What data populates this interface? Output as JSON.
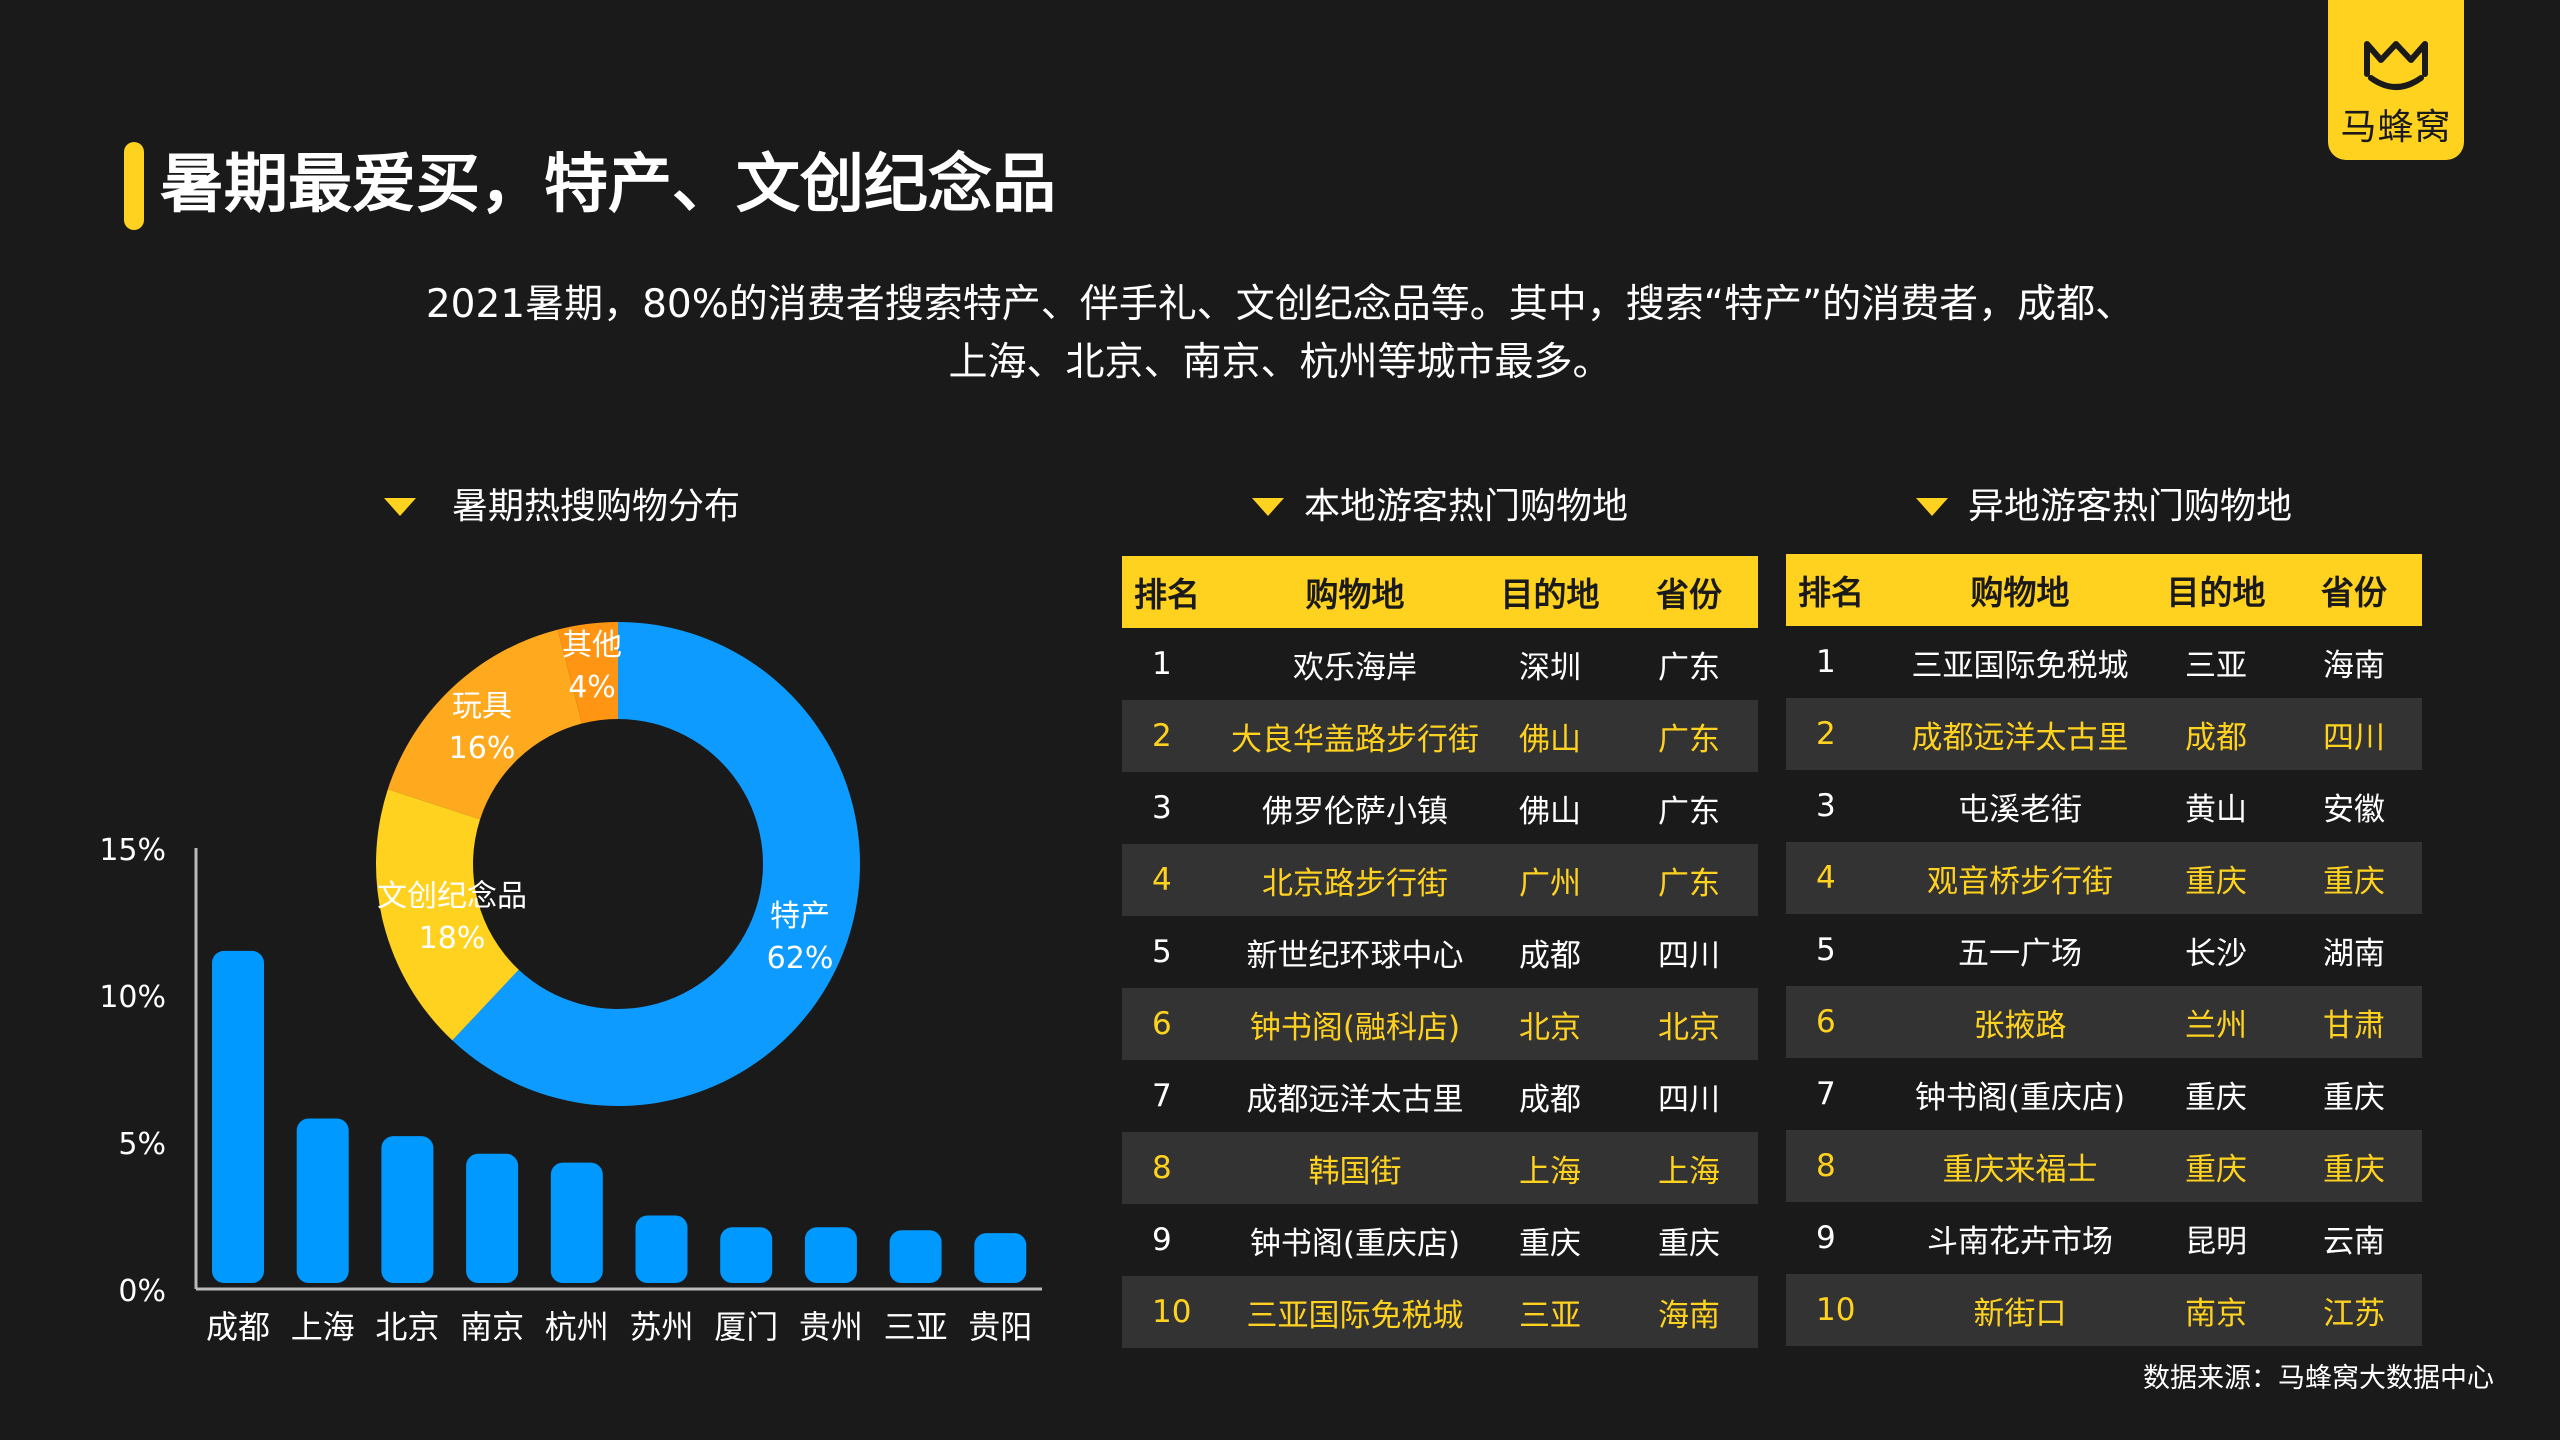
{
  "brand": {
    "name": "马蜂窝"
  },
  "title": "暑期最爱买，特产、文创纪念品",
  "subtitle_line1": "2021暑期，80%的消费者搜索特产、伴手礼、文创纪念品等。其中，搜索“特产”的消费者，成都、",
  "subtitle_line2": "上海、北京、南京、杭州等城市最多。",
  "sections": {
    "donut_title": "暑期热搜购物分布",
    "local_title": "本地游客热门购物地",
    "remote_title": "异地游客热门购物地"
  },
  "colors": {
    "accent": "#ffd21f",
    "bar": "#0099ff",
    "background": "#1a1a1a",
    "row_alt": "#333333"
  },
  "chart_data": [
    {
      "type": "pie",
      "donut": true,
      "title": "暑期热搜购物分布",
      "slices": [
        {
          "name": "特产",
          "value": 62,
          "label": "62%",
          "color": "#0d9bff"
        },
        {
          "name": "文创纪念品",
          "value": 18,
          "label": "18%",
          "color": "#ffd21f"
        },
        {
          "name": "玩具",
          "value": 16,
          "label": "16%",
          "color": "#ffaa1e"
        },
        {
          "name": "其他",
          "value": 4,
          "label": "4%",
          "color": "#ff9512"
        }
      ]
    },
    {
      "type": "bar",
      "categories": [
        "成都",
        "上海",
        "北京",
        "南京",
        "杭州",
        "苏州",
        "厦门",
        "贵州",
        "三亚",
        "贵阳"
      ],
      "values": [
        11.5,
        5.8,
        5.2,
        4.6,
        4.3,
        2.5,
        2.1,
        2.1,
        2.0,
        1.9
      ],
      "ylim": [
        0,
        15
      ],
      "yticks": [
        "0%",
        "5%",
        "10%",
        "15%"
      ],
      "ytick_values": [
        0,
        5,
        10,
        15
      ],
      "color": "#0099ff"
    }
  ],
  "local_table": {
    "headers": [
      "排名",
      "购物地",
      "目的地",
      "省份"
    ],
    "rows": [
      [
        "1",
        "欢乐海岸",
        "深圳",
        "广东"
      ],
      [
        "2",
        "大良华盖路步行街",
        "佛山",
        "广东"
      ],
      [
        "3",
        "佛罗伦萨小镇",
        "佛山",
        "广东"
      ],
      [
        "4",
        "北京路步行街",
        "广州",
        "广东"
      ],
      [
        "5",
        "新世纪环球中心",
        "成都",
        "四川"
      ],
      [
        "6",
        "钟书阁(融科店)",
        "北京",
        "北京"
      ],
      [
        "7",
        "成都远洋太古里",
        "成都",
        "四川"
      ],
      [
        "8",
        "韩国街",
        "上海",
        "上海"
      ],
      [
        "9",
        "钟书阁(重庆店)",
        "重庆",
        "重庆"
      ],
      [
        "10",
        "三亚国际免税城",
        "三亚",
        "海南"
      ]
    ]
  },
  "remote_table": {
    "headers": [
      "排名",
      "购物地",
      "目的地",
      "省份"
    ],
    "rows": [
      [
        "1",
        "三亚国际免税城",
        "三亚",
        "海南"
      ],
      [
        "2",
        "成都远洋太古里",
        "成都",
        "四川"
      ],
      [
        "3",
        "屯溪老街",
        "黄山",
        "安徽"
      ],
      [
        "4",
        "观音桥步行街",
        "重庆",
        "重庆"
      ],
      [
        "5",
        "五一广场",
        "长沙",
        "湖南"
      ],
      [
        "6",
        "张掖路",
        "兰州",
        "甘肃"
      ],
      [
        "7",
        "钟书阁(重庆店)",
        "重庆",
        "重庆"
      ],
      [
        "8",
        "重庆来福士",
        "重庆",
        "重庆"
      ],
      [
        "9",
        "斗南花卉市场",
        "昆明",
        "云南"
      ],
      [
        "10",
        "新街口",
        "南京",
        "江苏"
      ]
    ]
  },
  "source": "数据来源：马蜂窝大数据中心"
}
